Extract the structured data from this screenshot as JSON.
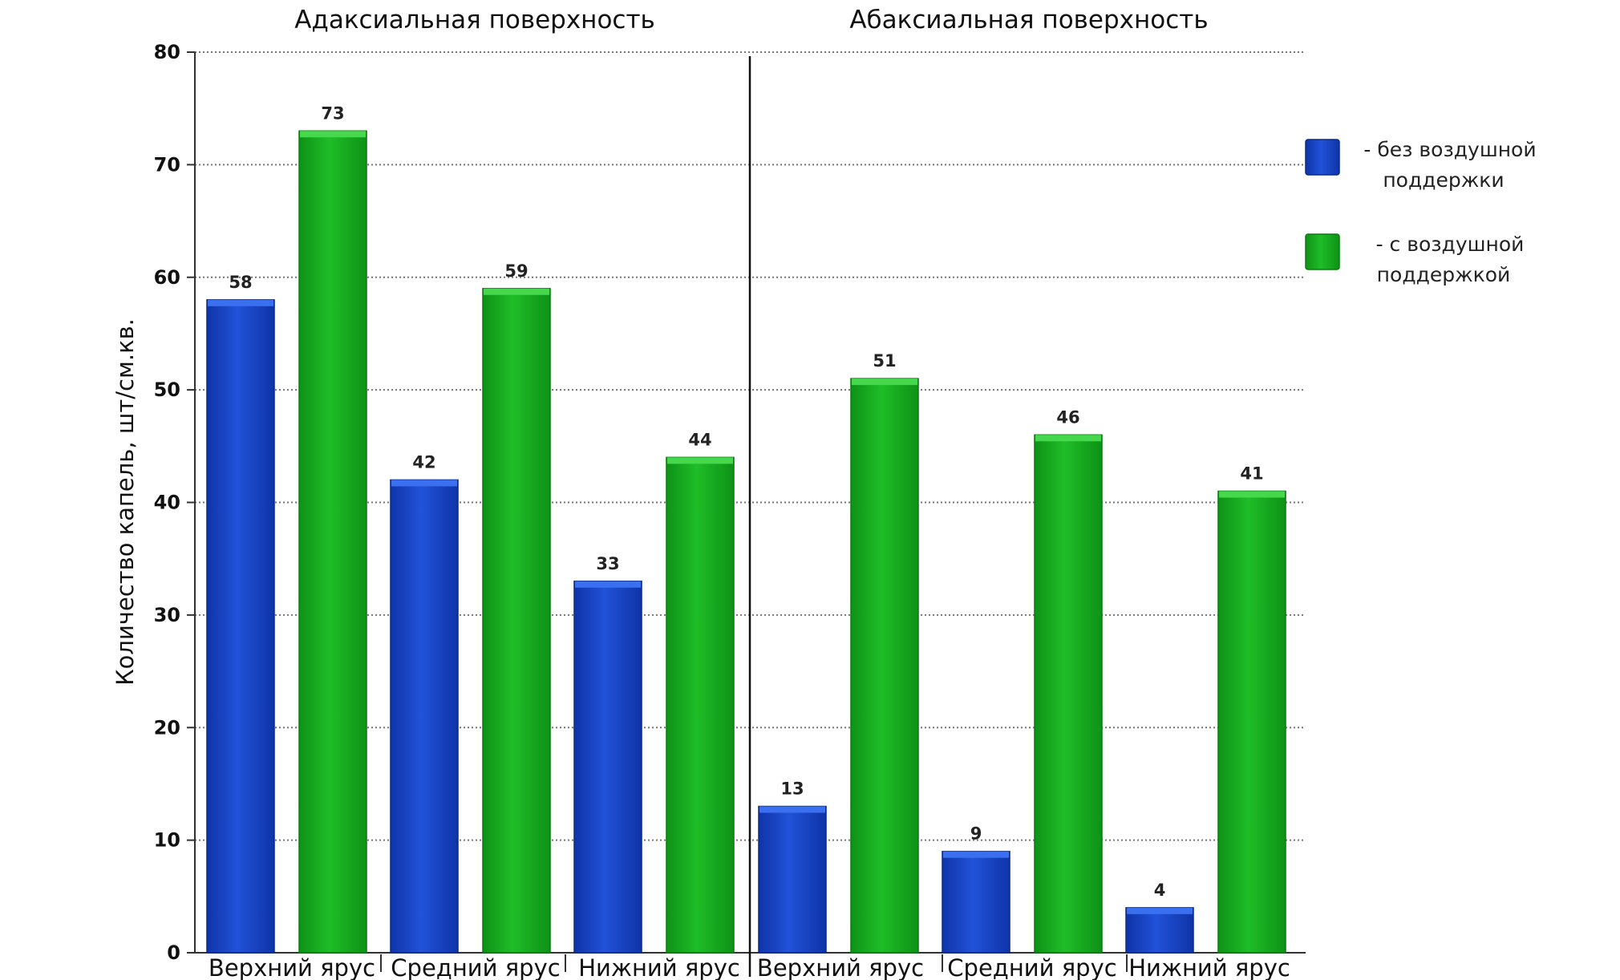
{
  "chart_data": {
    "type": "bar",
    "ylabel": "Количество капель, шт/см.кв.",
    "ylim": [
      0,
      80
    ],
    "yticks": [
      0,
      10,
      20,
      30,
      40,
      50,
      60,
      70,
      80
    ],
    "grid": true,
    "legend_placement": "right",
    "colors": {
      "without_support": "#1b46c9",
      "with_support": "#17ad1f"
    },
    "legend": [
      {
        "key": "without_support",
        "line1": "- без воздушной",
        "line2": "поддержки"
      },
      {
        "key": "with_support",
        "line1": "- с воздушной",
        "line2": "поддержкой"
      }
    ],
    "panels": [
      {
        "title": "Адаксиальная поверхность",
        "categories": [
          "Верхний ярус",
          "Средний ярус",
          "Нижний ярус"
        ],
        "series": [
          {
            "key": "without_support",
            "values": [
              58,
              42,
              33
            ]
          },
          {
            "key": "with_support",
            "values": [
              73,
              59,
              44
            ]
          }
        ]
      },
      {
        "title": "Абаксиальная поверхность",
        "categories": [
          "Верхний ярус",
          "Средний ярус",
          "Нижний ярус"
        ],
        "series": [
          {
            "key": "without_support",
            "values": [
              13,
              9,
              4
            ]
          },
          {
            "key": "with_support",
            "values": [
              51,
              46,
              41
            ]
          }
        ]
      }
    ]
  }
}
